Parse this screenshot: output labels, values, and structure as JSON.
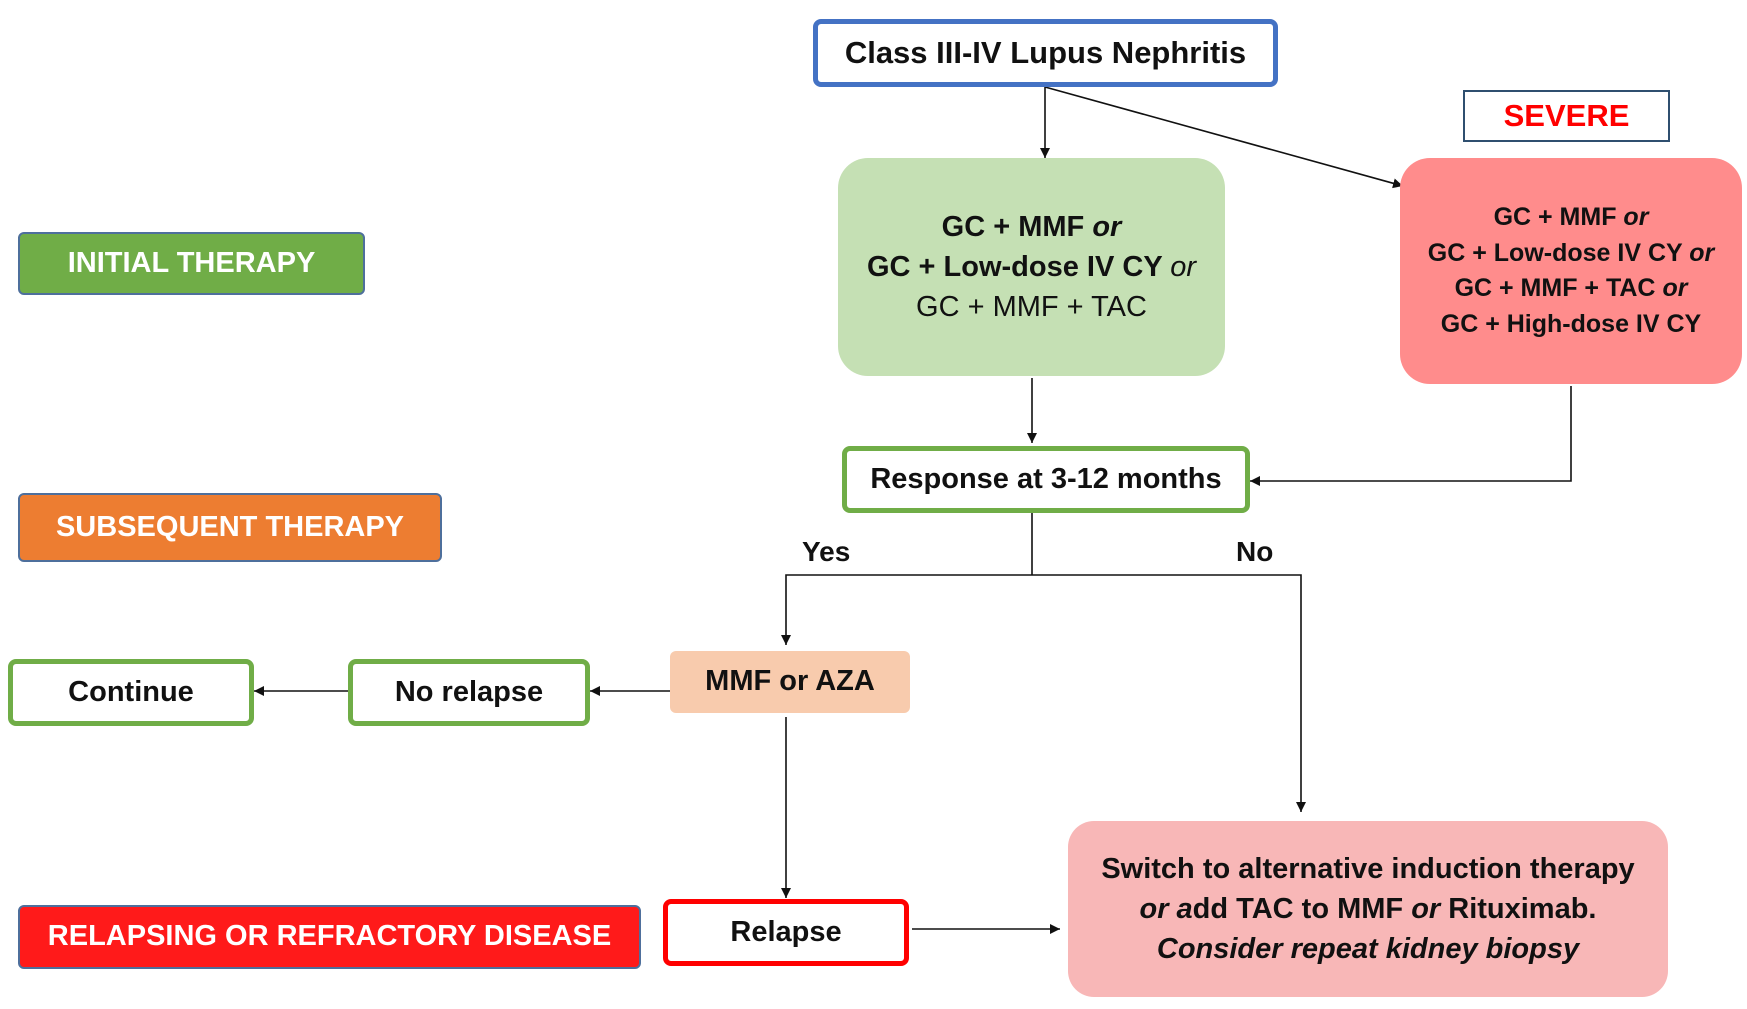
{
  "colors": {
    "blue_border": "#4472c4",
    "green_fill": "#c5e0b4",
    "green_border": "#70ad47",
    "red_fill": "#ff8c8c",
    "red_text": "#ff0000",
    "orange_fill": "#f8cbad",
    "pink_fill": "#f8b7b7",
    "initial_label": "#70ad47",
    "subsequent_label": "#ed7d31",
    "relapsing_label": "#ff1a1a"
  },
  "labels": {
    "initial": "INITIAL THERAPY",
    "subsequent": "SUBSEQUENT THERAPY",
    "relapsing": "RELAPSING OR REFRACTORY DISEASE"
  },
  "nodes": {
    "start": "Class III-IV Lupus Nephritis",
    "severe_tag": "SEVERE",
    "initial_standard": {
      "l1_a": "GC + MMF ",
      "l1_b": "or",
      "l2_a": "GC + Low-dose IV CY ",
      "l2_b": "or",
      "l3": "GC + MMF + TAC"
    },
    "initial_severe": {
      "l1_a": "GC + MMF ",
      "l1_b": "or",
      "l2_a": "GC + Low-dose IV CY ",
      "l2_b": "or",
      "l3_a": "GC + MMF + TAC ",
      "l3_b": "or",
      "l4": "GC + High-dose IV CY"
    },
    "response": "Response at 3-12 months",
    "maintenance": "MMF or AZA",
    "no_relapse": "No relapse",
    "continue": "Continue",
    "relapse": "Relapse",
    "switch": {
      "l1": "Switch to alternative induction therapy",
      "l2_a": "or a",
      "l2_b": "dd TAC to MMF ",
      "l2_c": "or",
      "l2_d": " Rituximab.",
      "l3": "Consider repeat kidney biopsy"
    }
  },
  "edges": {
    "yes": "Yes",
    "no": "No"
  }
}
